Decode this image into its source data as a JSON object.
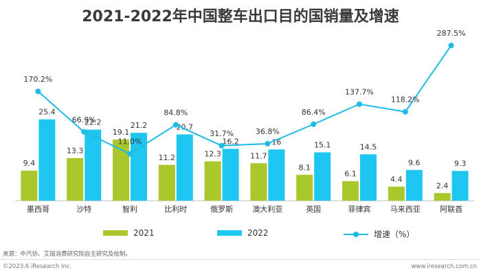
{
  "chart_data": {
    "type": "bar",
    "title": "2021-2022年中国整车出口目的国销量及增速",
    "categories": [
      "墨西哥",
      "沙特",
      "智利",
      "比利时",
      "俄罗斯",
      "澳大利亚",
      "英国",
      "菲律宾",
      "马来西亚",
      "阿联酋"
    ],
    "series": [
      {
        "name": "2021",
        "type": "bar",
        "values": [
          9.4,
          13.3,
          19.1,
          11.2,
          12.3,
          11.7,
          8.1,
          6.1,
          4.4,
          2.4
        ],
        "color": "#a8c82b"
      },
      {
        "name": "2022",
        "type": "bar",
        "values": [
          25.4,
          22.2,
          21.2,
          20.7,
          16.2,
          16,
          15.1,
          14.5,
          9.6,
          9.3
        ],
        "color": "#1ec6f0"
      },
      {
        "name": "增速（%）",
        "type": "line",
        "values": [
          170.2,
          66.9,
          11.0,
          84.8,
          31.7,
          36.8,
          86.4,
          137.7,
          118.2,
          287.5
        ],
        "color": "#1ebbe6"
      }
    ],
    "bar_labels": [
      "9.4",
      "13.3",
      "19.1",
      "11.2",
      "12.3",
      "11.7",
      "8.1",
      "6.1",
      "4.4",
      "2.4"
    ],
    "bar_labels_2022": [
      "25.4",
      "22.2",
      "21.2",
      "20.7",
      "16.2",
      "16",
      "15.1",
      "14.5",
      "9.6",
      "9.3"
    ],
    "line_labels": [
      "170.2%",
      "66.9%",
      "11.0%",
      "84.8%",
      "31.7%",
      "36.8%",
      "86.4%",
      "137.7%",
      "118.2%",
      "287.5%"
    ],
    "legend_position": "bottom",
    "grid": false
  },
  "legend": {
    "item_2021": "2021",
    "item_2022": "2022",
    "item_growth": "增速（%）"
  },
  "footer": {
    "source": "来源：中汽协、艾瑞消费研究院自主研究及绘制。",
    "copyright": "©2023.6 iResearch Inc.",
    "website": "www.iresearch.com.cn"
  }
}
